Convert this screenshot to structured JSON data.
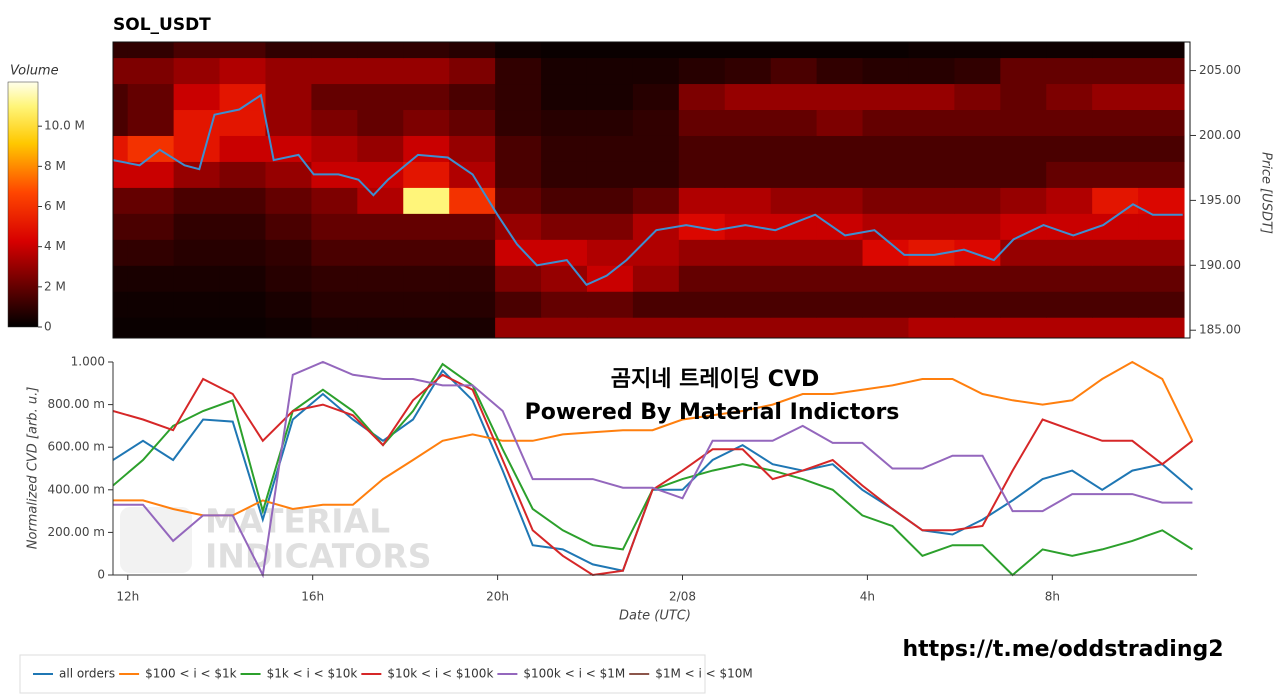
{
  "chart_data": [
    {
      "type": "heatmap",
      "title": "SOL_USDT",
      "xlim": [
        11.68,
        35.13
      ],
      "x_edges": [
        11,
        12,
        13,
        14,
        15,
        16,
        17,
        18,
        19,
        20,
        21,
        22,
        23,
        24,
        25,
        26,
        27,
        28,
        29,
        30,
        31,
        32,
        33,
        34,
        35
      ],
      "y_edges": [
        184,
        186,
        188,
        190,
        192,
        194,
        196,
        198,
        200,
        202,
        204,
        206,
        208
      ],
      "z": [
        [
          0.2,
          0.2,
          0.2,
          0.2,
          0.3,
          0.5,
          0.5,
          0.5,
          0.5,
          3,
          3,
          3,
          3,
          3,
          3,
          3,
          3,
          3,
          3.5,
          3.5,
          3.5,
          3.5,
          3.5,
          3.5
        ],
        [
          0.3,
          0.3,
          0.3,
          0.3,
          0.5,
          0.8,
          0.8,
          0.8,
          0.8,
          1.5,
          2,
          2,
          1.5,
          1.5,
          1.5,
          1.5,
          1.5,
          1.5,
          1.5,
          1.5,
          1.5,
          1.5,
          1.5,
          1.5
        ],
        [
          0.5,
          0.5,
          0.5,
          0.5,
          0.8,
          1,
          1,
          1,
          1,
          2.5,
          3,
          4,
          3,
          2,
          2,
          2,
          2,
          2,
          2,
          2,
          2,
          2,
          2,
          2
        ],
        [
          1,
          1,
          0.8,
          0.8,
          1,
          1.5,
          1.5,
          1.5,
          1.5,
          4,
          4,
          3.5,
          3.5,
          3,
          3,
          3,
          3,
          4.5,
          5,
          4.5,
          3,
          3,
          3,
          3
        ],
        [
          1.5,
          1.5,
          1,
          1,
          1.5,
          2,
          2,
          2,
          2,
          3,
          2.5,
          2.5,
          3.5,
          4.5,
          4,
          4,
          4,
          3.5,
          3.5,
          3.5,
          4,
          4,
          4,
          4
        ],
        [
          2,
          2,
          1.5,
          1.5,
          2,
          2.5,
          3.5,
          11,
          6,
          2,
          1.5,
          1.5,
          2,
          3.5,
          3.5,
          3,
          3,
          2.5,
          2.5,
          2.5,
          3,
          3.5,
          5,
          4.5
        ],
        [
          4,
          4,
          3,
          2.5,
          3,
          4,
          4,
          5,
          3.5,
          1.5,
          1,
          1,
          1,
          1.5,
          1.5,
          1.5,
          1.5,
          1.5,
          1.5,
          1.5,
          1.5,
          2,
          2,
          2
        ],
        [
          5,
          6,
          5,
          4,
          4,
          3.5,
          3,
          4,
          3,
          1.5,
          1,
          1,
          1,
          1.5,
          1.5,
          1.5,
          1.5,
          1.5,
          1.5,
          1.5,
          1.5,
          1.5,
          1.5,
          1.5
        ],
        [
          1.5,
          2,
          5,
          5,
          3,
          2.5,
          2,
          2.5,
          2,
          1,
          0.8,
          0.8,
          1,
          2,
          2,
          2,
          2.5,
          2,
          2,
          2,
          2,
          2,
          2,
          2
        ],
        [
          1.5,
          2,
          4,
          5,
          3,
          2,
          2,
          2,
          1.5,
          1,
          0.5,
          0.5,
          0.8,
          2.5,
          3,
          3,
          3,
          3,
          3,
          2.5,
          2,
          2.5,
          3,
          3
        ],
        [
          2.5,
          2.5,
          3,
          3.5,
          3,
          3,
          3,
          3,
          2.5,
          1,
          0.5,
          0.5,
          0.5,
          0.8,
          1,
          1.5,
          1,
          0.8,
          0.8,
          1,
          2,
          2,
          2,
          2
        ],
        [
          1,
          1,
          1.5,
          1.5,
          1,
          1,
          1,
          1,
          0.8,
          0.3,
          0.2,
          0.2,
          0.2,
          0.2,
          0.2,
          0.2,
          0.2,
          0.2,
          0.3,
          0.3,
          0.3,
          0.3,
          0.3,
          0.3
        ]
      ],
      "colorscale": "hot",
      "colorbar": {
        "title": "Volume",
        "lim": [
          0,
          12.2
        ],
        "ticks": [
          0,
          {
            "value": 2,
            "label": "2 M"
          },
          {
            "value": 4,
            "label": "4 M"
          },
          {
            "value": 6,
            "label": "6 M"
          },
          {
            "value": 8,
            "label": "8 M"
          },
          {
            "value": 10,
            "label": "10.0 M"
          }
        ]
      },
      "y2lim": [
        184.4,
        207.2
      ],
      "y2ticks": [
        {
          "value": 185,
          "label": "185.00"
        },
        {
          "value": 190,
          "label": "190.00"
        },
        {
          "value": 195,
          "label": "195.00"
        },
        {
          "value": 200,
          "label": "200.00"
        },
        {
          "value": 205,
          "label": "205.00"
        }
      ],
      "y2label": "Price [USDT]",
      "series": [
        {
          "color": "#3d8fd1",
          "axis": "y2",
          "x": [
            11.68,
            12.26,
            12.7,
            13.24,
            13.56,
            13.89,
            14.43,
            14.9,
            15.18,
            15.72,
            16.05,
            16.59,
            17.02,
            17.35,
            17.67,
            18.32,
            18.97,
            19.51,
            20.05,
            20.48,
            20.91,
            21.56,
            21.99,
            22.43,
            22.86,
            23.51,
            24.16,
            24.8,
            25.45,
            26.1,
            26.97,
            27.62,
            28.26,
            28.91,
            29.56,
            30.21,
            30.86,
            31.29,
            31.94,
            32.59,
            33.24,
            33.89,
            34.32,
            34.97
          ],
          "values": [
            198.1,
            197.7,
            198.9,
            197.7,
            197.4,
            201.6,
            202.0,
            203.1,
            198.1,
            198.5,
            197.0,
            197.0,
            196.6,
            195.4,
            196.6,
            198.5,
            198.3,
            197.0,
            193.9,
            191.6,
            190.0,
            190.4,
            188.5,
            189.2,
            190.4,
            192.7,
            193.1,
            192.7,
            193.1,
            192.7,
            193.9,
            192.3,
            192.7,
            190.8,
            190.8,
            191.2,
            190.4,
            192.0,
            193.1,
            192.3,
            193.1,
            194.7,
            193.9,
            193.9
          ]
        }
      ]
    },
    {
      "type": "line",
      "x": [
        11.68,
        12.33,
        12.98,
        13.63,
        14.27,
        14.92,
        15.57,
        16.22,
        16.87,
        17.52,
        18.17,
        18.81,
        19.46,
        20.11,
        20.76,
        21.41,
        22.06,
        22.71,
        23.35,
        24.0,
        24.65,
        25.3,
        25.95,
        26.6,
        27.25,
        27.89,
        28.54,
        29.19,
        29.84,
        30.49,
        31.14,
        31.79,
        32.43,
        33.08,
        33.73,
        34.38,
        35.03
      ],
      "xlim": [
        11.68,
        35.13
      ],
      "xticks": [
        {
          "value": 12,
          "label": "12h"
        },
        {
          "value": 16,
          "label": "16h"
        },
        {
          "value": 20,
          "label": "20h"
        },
        {
          "value": 24,
          "label": "2/08"
        },
        {
          "value": 28,
          "label": "4h"
        },
        {
          "value": 32,
          "label": "8h"
        }
      ],
      "ylim": [
        0,
        1
      ],
      "yticks": [
        0,
        {
          "value": 0.2,
          "label": "200.00 m"
        },
        {
          "value": 0.4,
          "label": "400.00 m"
        },
        {
          "value": 0.6,
          "label": "600.00 m"
        },
        {
          "value": 0.8,
          "label": "800.00 m"
        },
        {
          "value": 1,
          "label": "1.000"
        }
      ],
      "xlabel": "Date (UTC)",
      "ylabel": "Normalized CVD [arb. u.]",
      "legend": "bottom-left",
      "series": [
        {
          "name": "all orders",
          "color": "#1f77b4",
          "values": [
            0.54,
            0.63,
            0.54,
            0.73,
            0.72,
            0.26,
            0.73,
            0.85,
            0.73,
            0.63,
            0.73,
            0.96,
            0.82,
            0.49,
            0.14,
            0.12,
            0.05,
            0.02,
            0.4,
            0.4,
            0.54,
            0.61,
            0.52,
            0.49,
            0.52,
            0.4,
            0.31,
            0.21,
            0.19,
            0.26,
            0.35,
            0.45,
            0.49,
            0.4,
            0.49,
            0.52,
            0.4
          ]
        },
        {
          "name": "$100 < i < $1k",
          "color": "#ff7f0e",
          "values": [
            0.35,
            0.35,
            0.31,
            0.28,
            0.28,
            0.35,
            0.31,
            0.33,
            0.33,
            0.45,
            0.54,
            0.63,
            0.66,
            0.63,
            0.63,
            0.66,
            0.67,
            0.68,
            0.68,
            0.73,
            0.75,
            0.77,
            0.8,
            0.85,
            0.85,
            0.87,
            0.89,
            0.92,
            0.92,
            0.85,
            0.82,
            0.8,
            0.82,
            0.92,
            1.0,
            0.92,
            0.63
          ]
        },
        {
          "name": "$1k < i < $10k",
          "color": "#2ca02c",
          "values": [
            0.42,
            0.54,
            0.7,
            0.77,
            0.82,
            0.3,
            0.77,
            0.87,
            0.77,
            0.61,
            0.77,
            0.99,
            0.89,
            0.59,
            0.31,
            0.21,
            0.14,
            0.12,
            0.4,
            0.45,
            0.49,
            0.52,
            0.49,
            0.45,
            0.4,
            0.28,
            0.23,
            0.09,
            0.14,
            0.14,
            0.0,
            0.12,
            0.09,
            0.12,
            0.16,
            0.21,
            0.12
          ]
        },
        {
          "name": "$10k < i < $100k",
          "color": "#d62728",
          "values": [
            0.77,
            0.73,
            0.68,
            0.92,
            0.85,
            0.63,
            0.77,
            0.8,
            0.75,
            0.61,
            0.82,
            0.94,
            0.87,
            0.54,
            0.21,
            0.09,
            0.0,
            0.02,
            0.4,
            0.49,
            0.59,
            0.59,
            0.45,
            0.49,
            0.54,
            0.42,
            0.31,
            0.21,
            0.21,
            0.23,
            0.49,
            0.73,
            0.68,
            0.63,
            0.63,
            0.52,
            0.63
          ]
        },
        {
          "name": "$100k < i < $1M",
          "color": "#9467bd",
          "values": [
            0.33,
            0.33,
            0.16,
            0.28,
            0.28,
            0.0,
            0.94,
            1.0,
            0.94,
            0.92,
            0.92,
            0.89,
            0.89,
            0.77,
            0.45,
            0.45,
            0.45,
            0.41,
            0.41,
            0.36,
            0.63,
            0.63,
            0.63,
            0.7,
            0.62,
            0.62,
            0.5,
            0.5,
            0.56,
            0.56,
            0.3,
            0.3,
            0.38,
            0.38,
            0.38,
            0.34,
            0.34
          ]
        },
        {
          "name": "$1M < i < $10M",
          "color": "#8c564b",
          "values": [
            null,
            null,
            null,
            null,
            null,
            null,
            null,
            null,
            null,
            null,
            null,
            null,
            null,
            null,
            null,
            null,
            null,
            null,
            null,
            null,
            null,
            null,
            null,
            null,
            null,
            null,
            null,
            null,
            null,
            null,
            null,
            null,
            null,
            null,
            null,
            null,
            null
          ]
        }
      ],
      "annotations": [
        "곰지네 트레이딩 CVD",
        "Powered By Material Indictors",
        "https://t.me/oddstrading2",
        "MATERIAL",
        "INDICATORS"
      ]
    }
  ]
}
